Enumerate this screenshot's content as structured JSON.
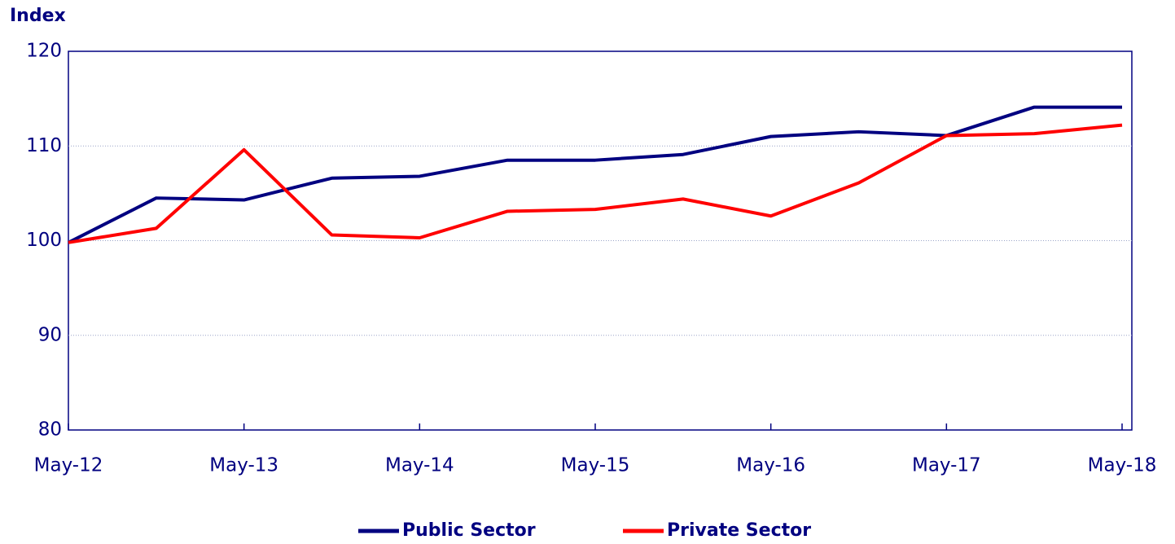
{
  "chart_data": {
    "type": "line",
    "y_label": "Index",
    "categories": [
      "May-12",
      null,
      "May-13",
      null,
      "May-14",
      null,
      "May-15",
      null,
      "May-16",
      null,
      "May-17",
      null,
      "May-18"
    ],
    "series": [
      {
        "name": "Public Sector",
        "color": "#000080",
        "values": [
          99.8,
          104.5,
          104.3,
          106.6,
          106.8,
          108.5,
          108.5,
          109.1,
          111.0,
          111.5,
          111.1,
          114.1,
          114.1
        ]
      },
      {
        "name": "Private Sector",
        "color": "#ff0000",
        "values": [
          99.8,
          101.3,
          109.6,
          100.6,
          100.3,
          103.1,
          103.3,
          104.4,
          102.6,
          106.1,
          111.1,
          111.3,
          112.2
        ]
      }
    ],
    "ylim": [
      80,
      120
    ],
    "yticks": [
      80,
      90,
      100,
      110,
      120
    ],
    "grid": true,
    "legend": "bottom"
  }
}
